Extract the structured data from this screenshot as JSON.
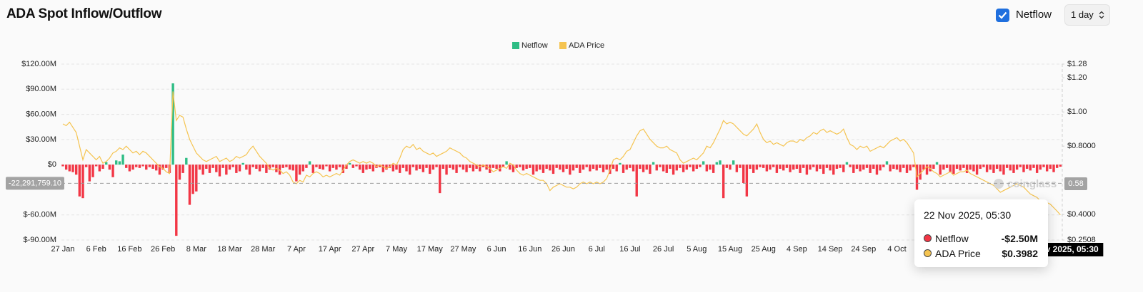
{
  "header": {
    "title": "ADA Spot Inflow/Outflow",
    "checkbox_label": "Netflow",
    "interval": "1 day"
  },
  "chart_data": {
    "type": "combo",
    "categories": [
      "27 Jan",
      null,
      null,
      null,
      null,
      null,
      null,
      null,
      null,
      null,
      "6 Feb",
      null,
      null,
      null,
      null,
      null,
      null,
      null,
      null,
      null,
      "16 Feb",
      null,
      null,
      null,
      null,
      null,
      null,
      null,
      null,
      null,
      "26 Feb",
      null,
      null,
      null,
      null,
      null,
      null,
      null,
      null,
      null,
      "8 Mar",
      null,
      null,
      null,
      null,
      null,
      null,
      null,
      null,
      null,
      "18 Mar",
      null,
      null,
      null,
      null,
      null,
      null,
      null,
      null,
      null,
      "28 Mar",
      null,
      null,
      null,
      null,
      null,
      null,
      null,
      null,
      null,
      "7 Apr",
      null,
      null,
      null,
      null,
      null,
      null,
      null,
      null,
      null,
      "17 Apr",
      null,
      null,
      null,
      null,
      null,
      null,
      null,
      null,
      null,
      "27 Apr",
      null,
      null,
      null,
      null,
      null,
      null,
      null,
      null,
      null,
      "7 May",
      null,
      null,
      null,
      null,
      null,
      null,
      null,
      null,
      null,
      "17 May",
      null,
      null,
      null,
      null,
      null,
      null,
      null,
      null,
      null,
      "27 May",
      null,
      null,
      null,
      null,
      null,
      null,
      null,
      null,
      null,
      "6 Jun",
      null,
      null,
      null,
      null,
      null,
      null,
      null,
      null,
      null,
      "16 Jun",
      null,
      null,
      null,
      null,
      null,
      null,
      null,
      null,
      null,
      "26 Jun",
      null,
      null,
      null,
      null,
      null,
      null,
      null,
      null,
      null,
      "6 Jul",
      null,
      null,
      null,
      null,
      null,
      null,
      null,
      null,
      null,
      "16 Jul",
      null,
      null,
      null,
      null,
      null,
      null,
      null,
      null,
      null,
      "26 Jul",
      null,
      null,
      null,
      null,
      null,
      null,
      null,
      null,
      null,
      "5 Aug",
      null,
      null,
      null,
      null,
      null,
      null,
      null,
      null,
      null,
      "15 Aug",
      null,
      null,
      null,
      null,
      null,
      null,
      null,
      null,
      null,
      "25 Aug",
      null,
      null,
      null,
      null,
      null,
      null,
      null,
      null,
      null,
      "4 Sep",
      null,
      null,
      null,
      null,
      null,
      null,
      null,
      null,
      null,
      "14 Sep",
      null,
      null,
      null,
      null,
      null,
      null,
      null,
      null,
      null,
      "24 Sep",
      null,
      null,
      null,
      null,
      null,
      null,
      null,
      null,
      null,
      "4 Oct",
      null,
      null,
      null,
      null,
      null,
      null,
      null,
      null,
      null,
      null,
      null,
      null,
      null,
      null,
      null,
      null,
      null,
      null,
      null,
      null,
      null,
      null,
      null,
      null,
      null,
      null,
      null,
      null,
      null,
      null,
      null,
      null,
      null,
      null,
      null,
      null,
      null,
      null,
      null,
      null,
      null,
      null,
      null,
      null,
      null,
      null,
      null,
      null,
      null
    ],
    "series": [
      {
        "name": "Netflow",
        "type": "bar",
        "color": "#2ebd85",
        "negative_color": "#f23645",
        "values": [
          -2000000.0,
          -6000000.0,
          -8000000.0,
          -9000000.0,
          -12000000.0,
          -38000000.0,
          -40000000.0,
          -3000000.0,
          -20000000.0,
          -15000000.0,
          -2000000.0,
          -8000000.0,
          -5000000.0,
          3000000.0,
          -6000000.0,
          -15000000.0,
          5000000.0,
          4000000.0,
          12000000.0,
          -4000000.0,
          -8000000.0,
          -6000000.0,
          -3000000.0,
          -4000000.0,
          -2000000.0,
          -6000000.0,
          -3000000.0,
          -5000000.0,
          -7000000.0,
          -12000000.0,
          -6000000.0,
          -4000000.0,
          -10000000.0,
          97000000.0,
          -85000000.0,
          -18000000.0,
          -10000000.0,
          8000000.0,
          -48000000.0,
          -35000000.0,
          -32000000.0,
          -6000000.0,
          -12000000.0,
          -5000000.0,
          -10000000.0,
          -4000000.0,
          -9000000.0,
          -14000000.0,
          -4000000.0,
          -12000000.0,
          -6000000.0,
          -3000000.0,
          -10000000.0,
          -8000000.0,
          2000000.0,
          -6000000.0,
          -12000000.0,
          -3000000.0,
          -5000000.0,
          -8000000.0,
          -4000000.0,
          -10000000.0,
          -6000000.0,
          -3000000.0,
          -9000000.0,
          -12000000.0,
          -4000000.0,
          -3000000.0,
          -6000000.0,
          -7000000.0,
          -20000000.0,
          -12000000.0,
          -8000000.0,
          -4000000.0,
          4000000.0,
          -10000000.0,
          -3000000.0,
          -5000000.0,
          -6000000.0,
          -2000000.0,
          -8000000.0,
          -4000000.0,
          -6000000.0,
          -3000000.0,
          -10000000.0,
          -5000000.0,
          2000000.0,
          -4000000.0,
          -2000000.0,
          -6000000.0,
          -10000000.0,
          -6000000.0,
          -5000000.0,
          -8000000.0,
          -4000000.0,
          -3000000.0,
          -9000000.0,
          -6000000.0,
          -4000000.0,
          -8000000.0,
          -6000000.0,
          -10000000.0,
          -4000000.0,
          -8000000.0,
          -12000000.0,
          -3000000.0,
          -7000000.0,
          -5000000.0,
          -9000000.0,
          -4000000.0,
          -11000000.0,
          -6000000.0,
          -3000000.0,
          -34000000.0,
          -5000000.0,
          -12000000.0,
          -4000000.0,
          -6000000.0,
          -10000000.0,
          -3000000.0,
          -6000000.0,
          -9000000.0,
          -4000000.0,
          -8000000.0,
          -5000000.0,
          -8000000.0,
          -3000000.0,
          -6000000.0,
          -10000000.0,
          -4000000.0,
          -5000000.0,
          -8000000.0,
          -3000000.0,
          4000000.0,
          -6000000.0,
          -9000000.0,
          -4000000.0,
          -3000000.0,
          -7000000.0,
          -5000000.0,
          -4000000.0,
          -12000000.0,
          -8000000.0,
          -6000000.0,
          -10000000.0,
          -5000000.0,
          -7000000.0,
          -11000000.0,
          -4000000.0,
          -6000000.0,
          -9000000.0,
          -5000000.0,
          -12000000.0,
          -7000000.0,
          -4000000.0,
          -10000000.0,
          -6000000.0,
          -3000000.0,
          -8000000.0,
          -5000000.0,
          -7000000.0,
          -4000000.0,
          -9000000.0,
          -6000000.0,
          -11000000.0,
          -5000000.0,
          -8000000.0,
          2000000.0,
          -10000000.0,
          -6000000.0,
          -4000000.0,
          -8000000.0,
          -38000000.0,
          -5000000.0,
          -9000000.0,
          -6000000.0,
          -11000000.0,
          3000000.0,
          -7000000.0,
          -3000000.0,
          -8000000.0,
          -10000000.0,
          -5000000.0,
          -12000000.0,
          -7000000.0,
          -4000000.0,
          -9000000.0,
          -6000000.0,
          -3000000.0,
          -8000000.0,
          -5000000.0,
          -3000000.0,
          4000000.0,
          -8000000.0,
          -6000000.0,
          -10000000.0,
          3000000.0,
          5000000.0,
          -40000000.0,
          -4000000.0,
          -6000000.0,
          5000000.0,
          -9000000.0,
          -4000000.0,
          -22000000.0,
          -38000000.0,
          -5000000.0,
          -10000000.0,
          -6000000.0,
          -3000000.0,
          -4000000.0,
          -8000000.0,
          -6000000.0,
          -3000000.0,
          -10000000.0,
          -5000000.0,
          -7000000.0,
          -4000000.0,
          -9000000.0,
          -6000000.0,
          -5000000.0,
          -10000000.0,
          -4000000.0,
          -12000000.0,
          -6000000.0,
          -3000000.0,
          -8000000.0,
          -5000000.0,
          -11000000.0,
          -4000000.0,
          -7000000.0,
          -12000000.0,
          -5000000.0,
          -4000000.0,
          -9000000.0,
          3000000.0,
          -3000000.0,
          -10000000.0,
          -5000000.0,
          -8000000.0,
          -6000000.0,
          -4000000.0,
          -10000000.0,
          -5000000.0,
          -12000000.0,
          -7000000.0,
          -3000000.0,
          4000000.0,
          -8000000.0,
          -5000000.0,
          -6000000.0,
          -9000000.0,
          -4000000.0,
          -10000000.0,
          -7000000.0,
          -3000000.0,
          -30000000.0,
          -18000000.0,
          -6000000.0,
          -12000000.0,
          -8000000.0,
          -5000000.0,
          3000000.0,
          -12000000.0,
          -6000000.0,
          -4000000.0,
          -9000000.0,
          -11000000.0,
          -5000000.0,
          -7000000.0,
          -4000000.0,
          -10000000.0,
          -6000000.0,
          -8000000.0,
          -12000000.0,
          -5000000.0,
          -3000000.0,
          -9000000.0,
          -6000000.0,
          -10000000.0,
          -5000000.0,
          -8000000.0,
          -12000000.0,
          -4000000.0,
          -7000000.0,
          -10000000.0,
          -6000000.0,
          -3000000.0,
          -9000000.0,
          -5000000.0,
          -7000000.0,
          -4000000.0,
          -10000000.0,
          -6000000.0,
          -3000000.0,
          -8000000.0,
          -5000000.0,
          -9000000.0,
          -4000000.0,
          -2500000.0
        ]
      },
      {
        "name": "ADA Price",
        "type": "line",
        "color": "#f5c451",
        "axis": "y2",
        "values": [
          0.93,
          0.92,
          0.94,
          0.91,
          0.88,
          0.8,
          0.72,
          0.78,
          0.76,
          0.74,
          0.72,
          0.74,
          0.7,
          0.71,
          0.73,
          0.76,
          0.77,
          0.79,
          0.78,
          0.8,
          0.78,
          0.76,
          0.77,
          0.75,
          0.77,
          0.76,
          0.74,
          0.72,
          0.7,
          0.68,
          0.67,
          0.65,
          0.64,
          1.12,
          0.95,
          0.98,
          0.97,
          0.9,
          0.84,
          0.8,
          0.76,
          0.74,
          0.72,
          0.71,
          0.72,
          0.73,
          0.74,
          0.71,
          0.72,
          0.73,
          0.71,
          0.72,
          0.74,
          0.73,
          0.74,
          0.75,
          0.78,
          0.8,
          0.77,
          0.74,
          0.72,
          0.7,
          0.67,
          0.66,
          0.67,
          0.66,
          0.64,
          0.65,
          0.63,
          0.59,
          0.58,
          0.6,
          0.59,
          0.63,
          0.62,
          0.64,
          0.65,
          0.64,
          0.62,
          0.63,
          0.62,
          0.63,
          0.64,
          0.63,
          0.66,
          0.69,
          0.71,
          0.72,
          0.71,
          0.7,
          0.71,
          0.7,
          0.71,
          0.7,
          0.68,
          0.69,
          0.68,
          0.67,
          0.68,
          0.7,
          0.69,
          0.73,
          0.78,
          0.8,
          0.79,
          0.81,
          0.78,
          0.79,
          0.77,
          0.76,
          0.75,
          0.76,
          0.74,
          0.75,
          0.76,
          0.77,
          0.79,
          0.78,
          0.77,
          0.76,
          0.74,
          0.73,
          0.71,
          0.7,
          0.69,
          0.68,
          0.69,
          0.68,
          0.67,
          0.65,
          0.66,
          0.67,
          0.68,
          0.67,
          0.7,
          0.69,
          0.66,
          0.64,
          0.63,
          0.64,
          0.63,
          0.62,
          0.61,
          0.6,
          0.6,
          0.58,
          0.54,
          0.56,
          0.57,
          0.58,
          0.57,
          0.56,
          0.56,
          0.55,
          0.56,
          0.58,
          0.59,
          0.58,
          0.59,
          0.58,
          0.59,
          0.58,
          0.59,
          0.61,
          0.66,
          0.72,
          0.73,
          0.72,
          0.74,
          0.77,
          0.78,
          0.82,
          0.86,
          0.89,
          0.9,
          0.87,
          0.84,
          0.82,
          0.8,
          0.79,
          0.79,
          0.8,
          0.78,
          0.77,
          0.76,
          0.72,
          0.7,
          0.71,
          0.72,
          0.73,
          0.72,
          0.74,
          0.76,
          0.8,
          0.79,
          0.82,
          0.86,
          0.9,
          0.95,
          0.93,
          0.94,
          0.93,
          0.91,
          0.89,
          0.87,
          0.86,
          0.88,
          0.9,
          0.93,
          0.88,
          0.84,
          0.82,
          0.83,
          0.81,
          0.82,
          0.81,
          0.8,
          0.82,
          0.83,
          0.83,
          0.82,
          0.84,
          0.83,
          0.85,
          0.86,
          0.88,
          0.87,
          0.89,
          0.9,
          0.88,
          0.89,
          0.88,
          0.87,
          0.88,
          0.9,
          0.85,
          0.81,
          0.8,
          0.78,
          0.8,
          0.79,
          0.8,
          0.77,
          0.78,
          0.79,
          0.8,
          0.79,
          0.81,
          0.83,
          0.84,
          0.85,
          0.83,
          0.84,
          0.82,
          0.79,
          0.76,
          0.62,
          0.64,
          0.66,
          0.68,
          0.67,
          0.65,
          0.64,
          0.62,
          0.63,
          0.64,
          0.65,
          0.63,
          0.64,
          0.65,
          0.65,
          0.66,
          0.64,
          0.63,
          0.62,
          0.61,
          0.6,
          0.59,
          0.58,
          0.57,
          0.55,
          0.53,
          0.54,
          0.55,
          0.56,
          0.57,
          0.58,
          0.57,
          0.56,
          0.54,
          0.52,
          0.51,
          0.5,
          0.48,
          0.46,
          0.47,
          0.46,
          0.44,
          0.42,
          0.3982
        ]
      }
    ],
    "ylim": [
      -90000000,
      120000000
    ],
    "yticks": [
      {
        "value": 120000000,
        "label": "$120.00M"
      },
      {
        "value": 90000000,
        "label": "$90.00M"
      },
      {
        "value": 60000000,
        "label": "$60.00M"
      },
      {
        "value": 30000000,
        "label": "$30.00M"
      },
      {
        "value": 0,
        "label": "$0"
      },
      {
        "value": -60000000,
        "label": "$-60.00M"
      },
      {
        "value": -90000000,
        "label": "$-90.00M"
      }
    ],
    "y2lim": [
      0.2508,
      1.28
    ],
    "y2ticks": [
      {
        "value": 1.28,
        "label": "$1.28"
      },
      {
        "value": 1.2,
        "label": "$1.20"
      },
      {
        "value": 1,
        "label": "$1.00"
      },
      {
        "value": 0.8,
        "label": "$0.8000"
      },
      {
        "value": 0.4,
        "label": "$0.4000"
      },
      {
        "value": 0.2508,
        "label": "$0.2508"
      }
    ],
    "grid": true,
    "legend": "top",
    "crosshair": {
      "y": {
        "value": -22291759.1,
        "label": "-22,291,759.10"
      },
      "y2": {
        "value": 0.58,
        "label": "0.58"
      }
    },
    "tooltip": {
      "title": "22 Nov 2025, 05:30",
      "values": [
        "-$2.50M",
        "$0.3982"
      ]
    },
    "watermark": "coinglass"
  }
}
